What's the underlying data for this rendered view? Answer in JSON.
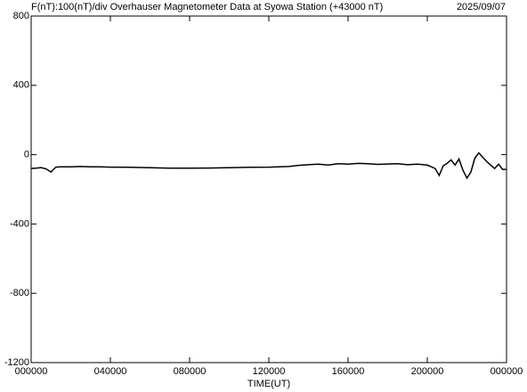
{
  "chart_data": {
    "type": "line",
    "title": "F(nT):100(nT)/div  Overhauser Magnetometer Data at Syowa Station (+43000 nT)",
    "date": "2025/09/07",
    "x_label": "TIME(UT)",
    "xlim": [
      0,
      24
    ],
    "xticks": [
      {
        "value": 0,
        "label": "000000"
      },
      {
        "value": 4,
        "label": "040000"
      },
      {
        "value": 8,
        "label": "080000"
      },
      {
        "value": 12,
        "label": "120000"
      },
      {
        "value": 16,
        "label": "160000"
      },
      {
        "value": 20,
        "label": "200000"
      },
      {
        "value": 24,
        "label": "000000"
      }
    ],
    "ylim": [
      -1200,
      800
    ],
    "yticks": [
      800,
      400,
      0,
      -400,
      -800,
      -1200
    ],
    "grid": false,
    "series": [
      {
        "color": "#000000",
        "x": [
          0,
          0.25,
          0.5,
          0.75,
          1,
          1.25,
          1.5,
          2,
          2.5,
          3,
          3.5,
          4,
          5,
          6,
          7,
          8,
          9,
          10,
          11,
          12,
          12.5,
          13,
          13.5,
          14,
          14.5,
          15,
          15.5,
          16,
          16.5,
          17,
          17.5,
          18,
          18.5,
          19,
          19.5,
          20,
          20.2,
          20.4,
          20.6,
          20.8,
          21,
          21.2,
          21.4,
          21.6,
          21.8,
          22,
          22.2,
          22.4,
          22.6,
          22.8,
          23,
          23.2,
          23.4,
          23.6,
          23.8,
          24
        ],
        "values": [
          -80,
          -78,
          -75,
          -82,
          -100,
          -72,
          -70,
          -70,
          -68,
          -70,
          -70,
          -72,
          -73,
          -75,
          -78,
          -78,
          -77,
          -75,
          -73,
          -72,
          -70,
          -68,
          -62,
          -58,
          -55,
          -60,
          -52,
          -55,
          -50,
          -52,
          -56,
          -54,
          -52,
          -58,
          -55,
          -60,
          -70,
          -80,
          -120,
          -65,
          -50,
          -30,
          -60,
          -25,
          -90,
          -135,
          -100,
          -20,
          10,
          -15,
          -40,
          -60,
          -80,
          -55,
          -85,
          -85
        ]
      }
    ]
  }
}
